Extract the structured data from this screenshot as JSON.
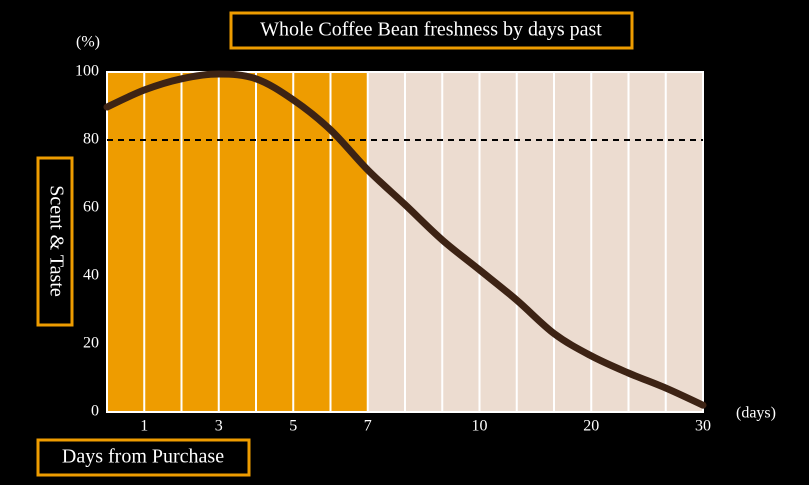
{
  "chart_data": {
    "type": "line",
    "title": "Whole Coffee Bean freshness by days past",
    "y_label": "Scent & Taste",
    "x_label": "Days from Purchase",
    "y_unit": "(%)",
    "x_unit": "(days)",
    "x": [
      0,
      1,
      2,
      3,
      4,
      5,
      6,
      7,
      8,
      9,
      10,
      13.3,
      16.7,
      20,
      23.3,
      26.7,
      30
    ],
    "series": [
      {
        "color": "#3d2314",
        "values": [
          89.7,
          94.7,
          98,
          99.4,
          98,
          91.8,
          83,
          71.2,
          61,
          50.6,
          41.8,
          33,
          23,
          16.5,
          11.5,
          7,
          2
        ]
      }
    ],
    "xlim": [
      0,
      30
    ],
    "xticks": [
      1,
      3,
      5,
      7,
      10,
      20,
      30
    ],
    "ylim": [
      0,
      100
    ],
    "yticks": [
      0,
      20,
      40,
      60,
      80,
      100
    ],
    "threshold": 80,
    "fresh_until": 7,
    "fresh_color": "#ee9c00",
    "stale_color": "#ecdcd0"
  }
}
